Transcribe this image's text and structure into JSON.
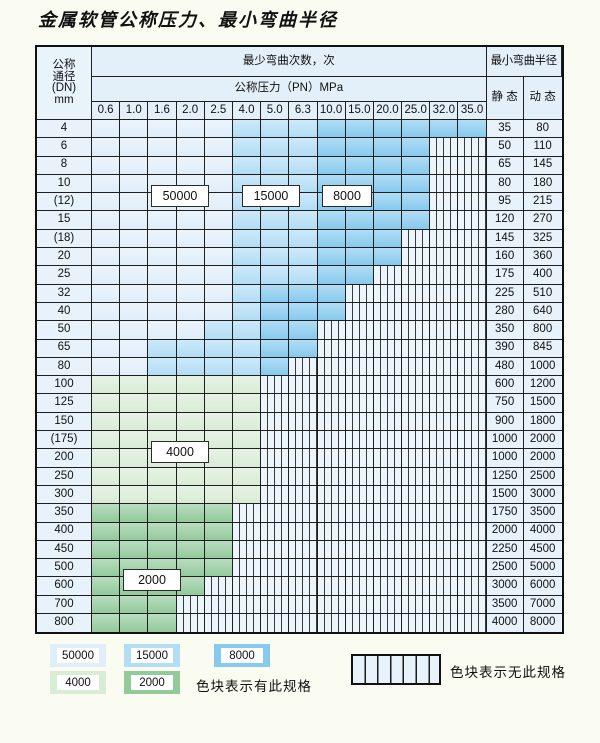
{
  "title": "金属软管公称压力、最小弯曲半径",
  "colors": {
    "50000": "#e0eefa",
    "15000": "#b2ddf5",
    "8000": "#87caee",
    "4000": "#d9ecd6",
    "2000": "#93ca9c",
    "grid": "#1f1f1f",
    "no_spec_bg": "#edf5fc",
    "header_bg": "#e3eff9",
    "label_col_bg": "#e8f2fa"
  },
  "table_headers": {
    "dn_lines": [
      "公称",
      "通径",
      "(DN)",
      "mm"
    ],
    "cycles": "最少弯曲次数，次",
    "pressure": "公称压力（PN）MPa",
    "pressure_ticks": [
      "0.6",
      "1.0",
      "1.6",
      "2.0",
      "2.5",
      "4.0",
      "5.0",
      "6.3",
      "10.0",
      "15.0",
      "20.0",
      "25.0",
      "32.0",
      "35.0"
    ],
    "radius": "最小弯曲半径",
    "static": "静 态",
    "dynamic": "动 态"
  },
  "region_labels": [
    "50000",
    "15000",
    "8000",
    "4000",
    "2000"
  ],
  "legend": {
    "items": [
      {
        "value": "50000"
      },
      {
        "value": "15000"
      },
      {
        "value": "8000"
      },
      {
        "value": "4000"
      },
      {
        "value": "2000"
      }
    ],
    "has_spec_text": "色块表示有此规格",
    "no_spec_text": "色块表示无此规格"
  },
  "chart_data": {
    "type": "table",
    "title": "金属软管公称压力、最小弯曲半径",
    "columns_label": "公称压力（PN）MPa",
    "rows_label": "公称通径(DN) mm",
    "cycles_label": "最少弯曲次数，次",
    "radius_labels": [
      "静 态",
      "动 态"
    ],
    "pressures": [
      "0.6",
      "1.0",
      "1.6",
      "2.0",
      "2.5",
      "4.0",
      "5.0",
      "6.3",
      "10.0",
      "15.0",
      "20.0",
      "25.0",
      "32.0",
      "35.0"
    ],
    "rows": [
      {
        "dn": "4",
        "bands": [
          [
            "50000",
            "0.6",
            "2.5"
          ],
          [
            "15000",
            "4.0",
            "6.3"
          ],
          [
            "8000",
            "10.0",
            "35.0"
          ]
        ],
        "static": 35,
        "dynamic": 80
      },
      {
        "dn": "6",
        "bands": [
          [
            "50000",
            "0.6",
            "2.5"
          ],
          [
            "15000",
            "4.0",
            "6.3"
          ],
          [
            "8000",
            "10.0",
            "25.0"
          ]
        ],
        "static": 50,
        "dynamic": 110
      },
      {
        "dn": "8",
        "bands": [
          [
            "50000",
            "0.6",
            "2.5"
          ],
          [
            "15000",
            "4.0",
            "6.3"
          ],
          [
            "8000",
            "10.0",
            "25.0"
          ]
        ],
        "static": 65,
        "dynamic": 145
      },
      {
        "dn": "10",
        "bands": [
          [
            "50000",
            "0.6",
            "2.5"
          ],
          [
            "15000",
            "4.0",
            "6.3"
          ],
          [
            "8000",
            "10.0",
            "25.0"
          ]
        ],
        "static": 80,
        "dynamic": 180
      },
      {
        "dn": "(12)",
        "bands": [
          [
            "50000",
            "0.6",
            "2.5"
          ],
          [
            "15000",
            "4.0",
            "6.3"
          ],
          [
            "8000",
            "10.0",
            "25.0"
          ]
        ],
        "static": 95,
        "dynamic": 215
      },
      {
        "dn": "15",
        "bands": [
          [
            "50000",
            "0.6",
            "2.5"
          ],
          [
            "15000",
            "4.0",
            "6.3"
          ],
          [
            "8000",
            "10.0",
            "25.0"
          ]
        ],
        "static": 120,
        "dynamic": 270
      },
      {
        "dn": "(18)",
        "bands": [
          [
            "50000",
            "0.6",
            "2.5"
          ],
          [
            "15000",
            "4.0",
            "6.3"
          ],
          [
            "8000",
            "10.0",
            "20.0"
          ]
        ],
        "static": 145,
        "dynamic": 325
      },
      {
        "dn": "20",
        "bands": [
          [
            "50000",
            "0.6",
            "2.5"
          ],
          [
            "15000",
            "4.0",
            "6.3"
          ],
          [
            "8000",
            "10.0",
            "20.0"
          ]
        ],
        "static": 160,
        "dynamic": 360
      },
      {
        "dn": "25",
        "bands": [
          [
            "50000",
            "0.6",
            "2.5"
          ],
          [
            "15000",
            "4.0",
            "6.3"
          ],
          [
            "8000",
            "10.0",
            "15.0"
          ]
        ],
        "static": 175,
        "dynamic": 400
      },
      {
        "dn": "32",
        "bands": [
          [
            "50000",
            "0.6",
            "2.5"
          ],
          [
            "15000",
            "4.0",
            "4.0"
          ],
          [
            "8000",
            "5.0",
            "10.0"
          ]
        ],
        "static": 225,
        "dynamic": 510
      },
      {
        "dn": "40",
        "bands": [
          [
            "50000",
            "0.6",
            "2.5"
          ],
          [
            "15000",
            "4.0",
            "4.0"
          ],
          [
            "8000",
            "5.0",
            "10.0"
          ]
        ],
        "static": 280,
        "dynamic": 640
      },
      {
        "dn": "50",
        "bands": [
          [
            "50000",
            "0.6",
            "2.0"
          ],
          [
            "15000",
            "2.5",
            "4.0"
          ],
          [
            "8000",
            "5.0",
            "6.3"
          ]
        ],
        "static": 350,
        "dynamic": 800
      },
      {
        "dn": "65",
        "bands": [
          [
            "50000",
            "0.6",
            "1.0"
          ],
          [
            "15000",
            "1.6",
            "4.0"
          ],
          [
            "8000",
            "5.0",
            "6.3"
          ]
        ],
        "static": 390,
        "dynamic": 845
      },
      {
        "dn": "80",
        "bands": [
          [
            "50000",
            "0.6",
            "1.0"
          ],
          [
            "15000",
            "1.6",
            "4.0"
          ],
          [
            "8000",
            "5.0",
            "5.0"
          ]
        ],
        "static": 480,
        "dynamic": 1000
      },
      {
        "dn": "100",
        "bands": [
          [
            "4000",
            "0.6",
            "4.0"
          ]
        ],
        "static": 600,
        "dynamic": 1200
      },
      {
        "dn": "125",
        "bands": [
          [
            "4000",
            "0.6",
            "4.0"
          ]
        ],
        "static": 750,
        "dynamic": 1500
      },
      {
        "dn": "150",
        "bands": [
          [
            "4000",
            "0.6",
            "4.0"
          ]
        ],
        "static": 900,
        "dynamic": 1800
      },
      {
        "dn": "(175)",
        "bands": [
          [
            "4000",
            "0.6",
            "4.0"
          ]
        ],
        "static": 1000,
        "dynamic": 2000
      },
      {
        "dn": "200",
        "bands": [
          [
            "4000",
            "0.6",
            "4.0"
          ]
        ],
        "static": 1000,
        "dynamic": 2000
      },
      {
        "dn": "250",
        "bands": [
          [
            "4000",
            "0.6",
            "4.0"
          ]
        ],
        "static": 1250,
        "dynamic": 2500
      },
      {
        "dn": "300",
        "bands": [
          [
            "4000",
            "0.6",
            "4.0"
          ]
        ],
        "static": 1500,
        "dynamic": 3000
      },
      {
        "dn": "350",
        "bands": [
          [
            "2000",
            "0.6",
            "2.5"
          ]
        ],
        "static": 1750,
        "dynamic": 3500
      },
      {
        "dn": "400",
        "bands": [
          [
            "2000",
            "0.6",
            "2.5"
          ]
        ],
        "static": 2000,
        "dynamic": 4000
      },
      {
        "dn": "450",
        "bands": [
          [
            "2000",
            "0.6",
            "2.5"
          ]
        ],
        "static": 2250,
        "dynamic": 4500
      },
      {
        "dn": "500",
        "bands": [
          [
            "2000",
            "0.6",
            "2.5"
          ]
        ],
        "static": 2500,
        "dynamic": 5000
      },
      {
        "dn": "600",
        "bands": [
          [
            "2000",
            "0.6",
            "2.0"
          ]
        ],
        "static": 3000,
        "dynamic": 6000
      },
      {
        "dn": "700",
        "bands": [
          [
            "2000",
            "0.6",
            "1.6"
          ]
        ],
        "static": 3500,
        "dynamic": 7000
      },
      {
        "dn": "800",
        "bands": [
          [
            "2000",
            "0.6",
            "1.6"
          ]
        ],
        "static": 4000,
        "dynamic": 8000
      }
    ]
  }
}
